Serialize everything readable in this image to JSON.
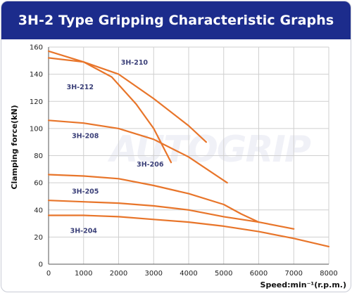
{
  "chart_data": {
    "type": "line",
    "title": "3H-2 Type Gripping Characteristic Graphs",
    "xlabel": "Speed:min⁻¹(r.p.m.)",
    "ylabel": "Clamping force(kN)",
    "xlim": [
      0,
      8000
    ],
    "ylim": [
      0,
      160
    ],
    "xticks": [
      0,
      1000,
      2000,
      3000,
      4000,
      5000,
      6000,
      7000,
      8000
    ],
    "yticks": [
      0,
      20,
      40,
      60,
      80,
      100,
      120,
      140,
      160
    ],
    "grid": true,
    "watermark": "AUTOGRIP",
    "line_color": "#e8752a",
    "series": [
      {
        "name": "3H-210",
        "x": [
          0,
          1000,
          2000,
          3000,
          4000,
          4500
        ],
        "y": [
          152,
          149,
          140,
          122,
          102,
          90
        ]
      },
      {
        "name": "3H-212",
        "x": [
          0,
          1000,
          1800,
          2500,
          3000,
          3500
        ],
        "y": [
          157,
          149,
          138,
          118,
          100,
          75
        ]
      },
      {
        "name": "3H-208",
        "x": [
          0,
          1000,
          2000,
          3000,
          4000,
          5100
        ],
        "y": [
          106,
          104,
          100,
          92,
          79,
          60
        ]
      },
      {
        "name": "3H-206",
        "x": [
          0,
          1000,
          2000,
          3000,
          4000,
          5000,
          5500,
          6000
        ],
        "y": [
          66,
          65,
          63,
          58,
          52,
          44,
          37,
          31
        ]
      },
      {
        "name": "3H-205",
        "x": [
          0,
          1000,
          2000,
          3000,
          4000,
          5000,
          6000,
          7000
        ],
        "y": [
          47,
          46,
          45,
          43,
          40,
          35,
          31,
          26
        ]
      },
      {
        "name": "3H-204",
        "x": [
          0,
          1000,
          2000,
          3000,
          4000,
          5000,
          6000,
          7000,
          8000
        ],
        "y": [
          36,
          36,
          35,
          33,
          31,
          28,
          24,
          19,
          13
        ]
      }
    ],
    "labels": [
      {
        "series": "3H-210",
        "text": "3H-210",
        "x": 2450,
        "y": 147
      },
      {
        "series": "3H-212",
        "text": "3H-212",
        "x": 900,
        "y": 129
      },
      {
        "series": "3H-208",
        "text": "3H-208",
        "x": 1050,
        "y": 93
      },
      {
        "series": "3H-206",
        "text": "3H-206",
        "x": 2900,
        "y": 72
      },
      {
        "series": "3H-205",
        "text": "3H-205",
        "x": 1050,
        "y": 52
      },
      {
        "series": "3H-204",
        "text": "3H-204",
        "x": 1000,
        "y": 23
      }
    ]
  }
}
